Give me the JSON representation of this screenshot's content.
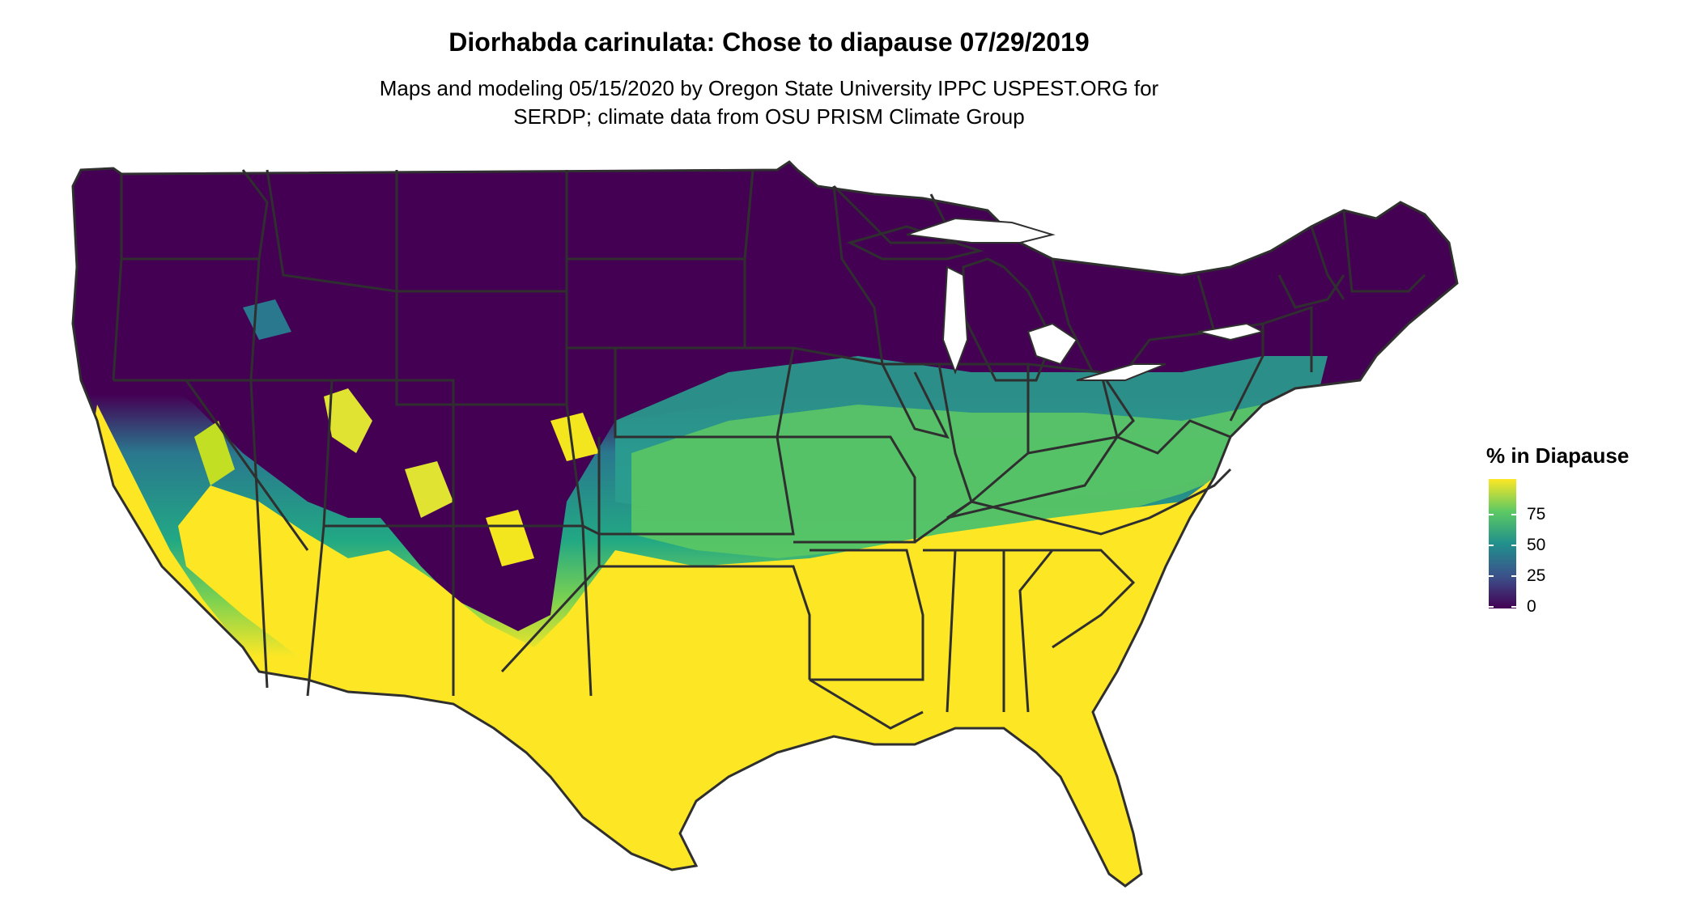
{
  "title": "Diorhabda carinulata: Chose to diapause 07/29/2019",
  "subtitle_line1": "Maps and modeling 05/15/2020 by Oregon State University IPPC USPEST.ORG for",
  "subtitle_line2": "SERDP; climate data from OSU PRISM Climate Group",
  "legend": {
    "title": "% in Diapause",
    "ticks": [
      "0",
      "25",
      "50",
      "75"
    ],
    "range": [
      0,
      100
    ],
    "palette": "viridis"
  },
  "map_data": {
    "region": "Contiguous United States",
    "variable": "% in Diapause",
    "colors": {
      "low": "#440154",
      "mid": "#21908c",
      "high": "#fde725",
      "boundary": "#2f2f2f"
    }
  }
}
